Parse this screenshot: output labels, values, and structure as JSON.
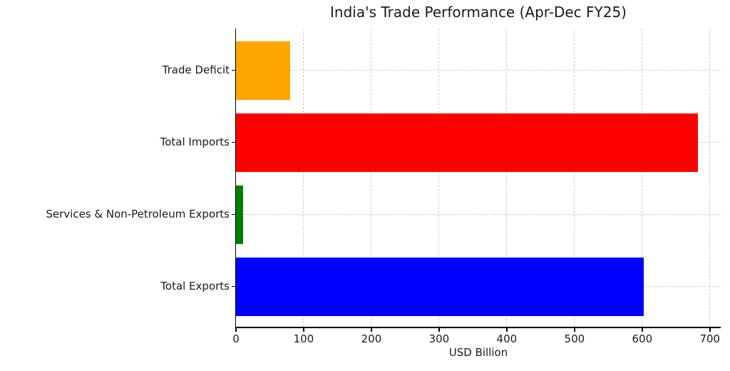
{
  "chart_data": {
    "type": "bar",
    "orientation": "horizontal",
    "title": "India's Trade Performance (Apr-Dec FY25)",
    "xlabel": "USD Billion",
    "ylabel": "",
    "categories": [
      "Trade Deficit",
      "Total Imports",
      "Services & Non-Petroleum Exports",
      "Total Exports"
    ],
    "values": [
      79.5,
      682.2,
      10.5,
      602.6
    ],
    "bar_colors": [
      "#ffa500",
      "#ff0000",
      "#008000",
      "#0000ff"
    ],
    "categories_order": "top-to-bottom",
    "xlim": [
      0,
      716
    ],
    "xticks": [
      0,
      100,
      200,
      300,
      400,
      500,
      600,
      700
    ],
    "grid": "on",
    "grid_style": "dashed",
    "legend_position": "none"
  },
  "colors": {
    "background": "#ffffff",
    "axis": "#000000",
    "grid": "#cccccc",
    "text": "#1a1a1a"
  }
}
